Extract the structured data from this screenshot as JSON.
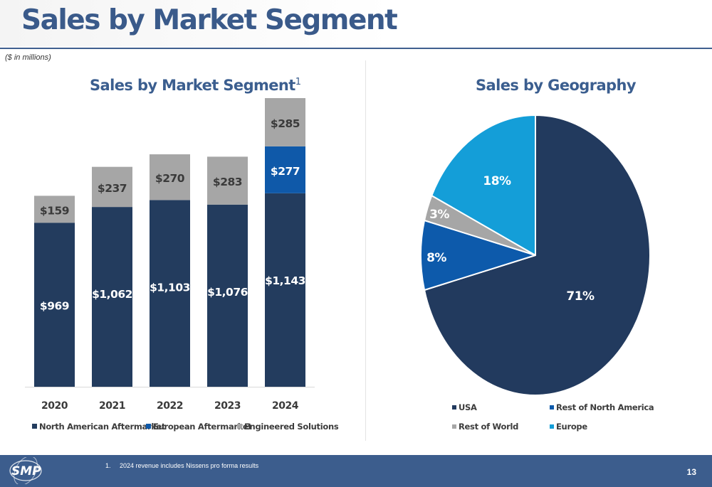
{
  "slide": {
    "title": "Sales by Market Segment",
    "subtitle": "($ in millions)",
    "footnote_number": "1.",
    "footnote_text": "2024 revenue includes Nissens pro forma results",
    "page_number": "13",
    "logo_text": "SMP"
  },
  "chart_data": [
    {
      "type": "bar",
      "stacked": true,
      "title": "Sales by Market Segment",
      "title_superscript": "1",
      "categories": [
        "2020",
        "2021",
        "2022",
        "2023",
        "2024"
      ],
      "series": [
        {
          "name": "North American Aftermarket",
          "color": "#233c5e",
          "values": [
            969,
            1062,
            1103,
            1076,
            1143
          ],
          "labels": [
            "$969",
            "$1,062",
            "$1,103",
            "$1,076",
            "$1,143"
          ]
        },
        {
          "name": "European Aftermarket",
          "color": "#0f59a9",
          "values": [
            0,
            0,
            0,
            0,
            277
          ],
          "labels": [
            "",
            "",
            "",
            "",
            "$277"
          ]
        },
        {
          "name": "Engineered Solutions",
          "color": "#a6a6a6",
          "values": [
            159,
            237,
            270,
            283,
            285
          ],
          "labels": [
            "$159",
            "$237",
            "$270",
            "$283",
            "$285"
          ]
        }
      ],
      "legend_position": "bottom",
      "grid": false
    },
    {
      "type": "pie",
      "title": "Sales by Geography",
      "slices": [
        {
          "name": "USA",
          "value": 71,
          "label": "71%",
          "color": "#223a5e"
        },
        {
          "name": "Rest of North America",
          "value": 8,
          "label": "8%",
          "color": "#0d5aab"
        },
        {
          "name": "Rest of World",
          "value": 3,
          "label": "3%",
          "color": "#a6a6a6"
        },
        {
          "name": "Europe",
          "value": 18,
          "label": "18%",
          "color": "#149ed8"
        }
      ],
      "legend_position": "bottom"
    }
  ]
}
